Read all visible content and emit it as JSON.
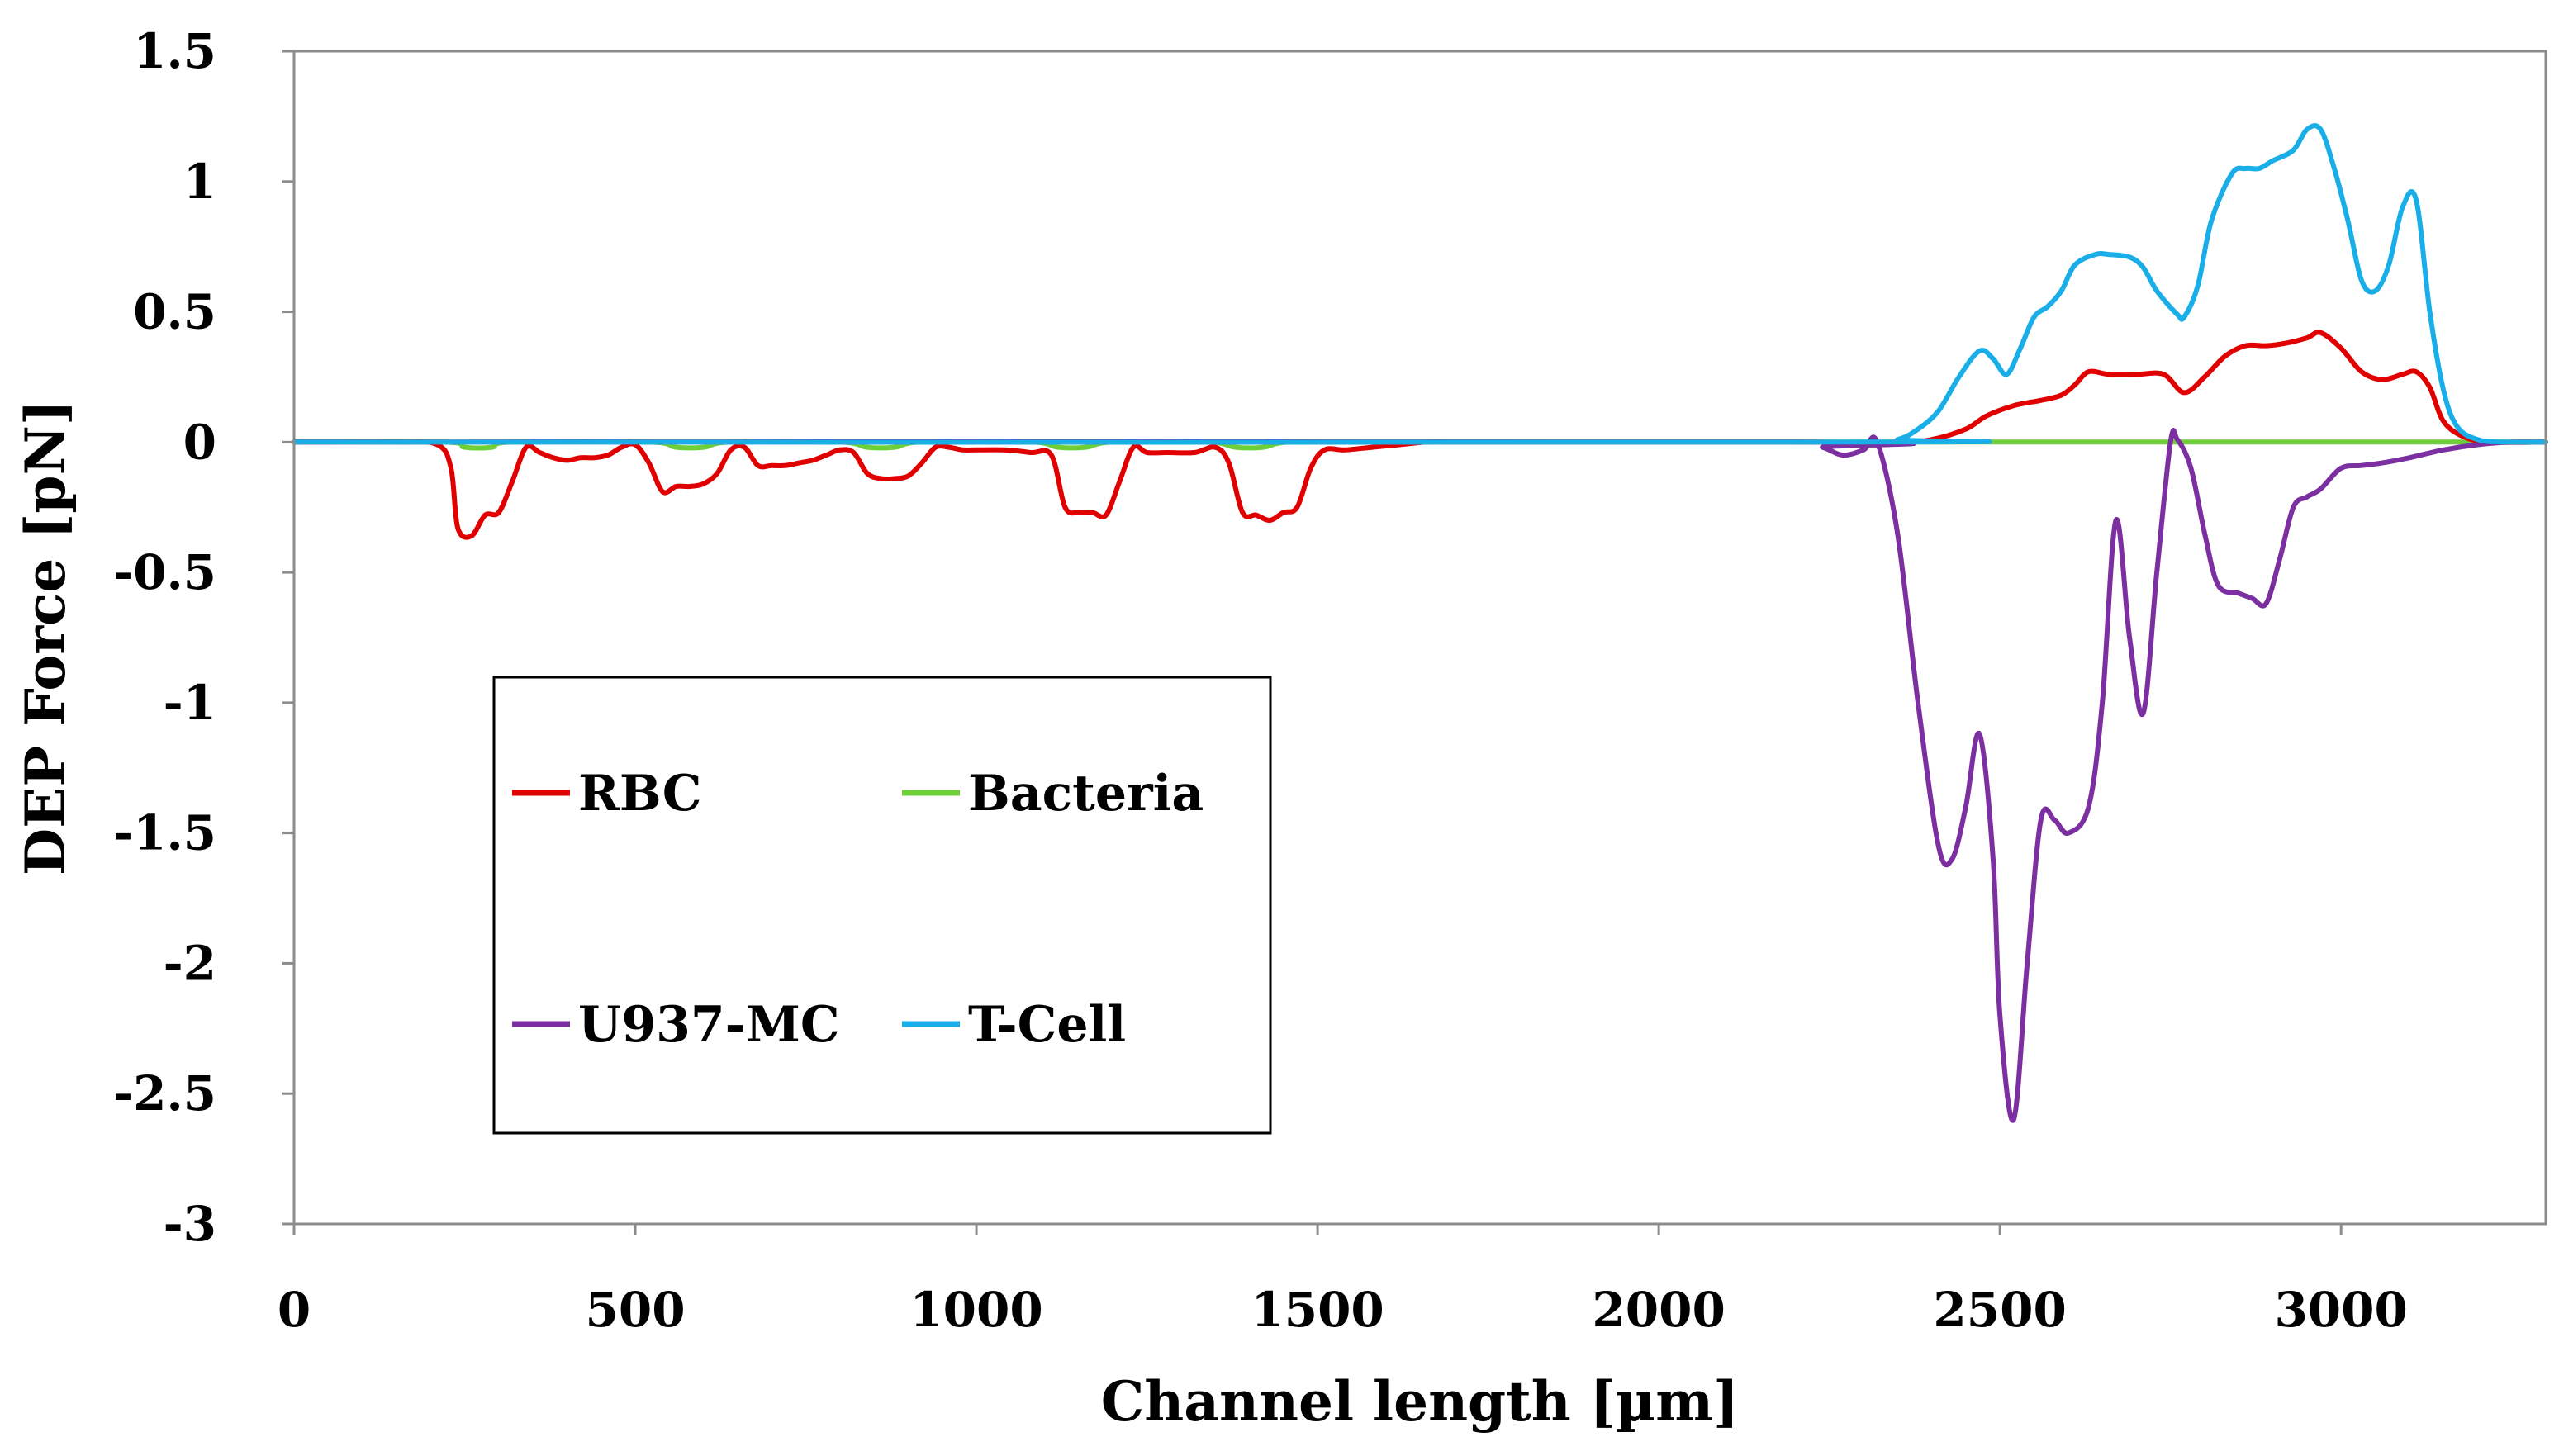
{
  "chart_data": {
    "type": "line",
    "title": "",
    "xlabel": "Channel length [µm]",
    "ylabel": "DEP Force [pN]",
    "xlim": [
      0,
      3300
    ],
    "ylim": [
      -3,
      1.5
    ],
    "xticks": [
      0,
      500,
      1000,
      1500,
      2000,
      2500,
      3000
    ],
    "xtick_labels": [
      "0",
      "500",
      "1000",
      "1500",
      "2000",
      "2500",
      "3000"
    ],
    "yticks": [
      1.5,
      1,
      0.5,
      0,
      -0.5,
      -1,
      -1.5,
      -2,
      -2.5,
      -3
    ],
    "ytick_labels": [
      "1.5",
      "1",
      "0.5",
      "0",
      "-0.5",
      "-1",
      "-1.5",
      "-2",
      "-2.5",
      "-3"
    ],
    "grid": false,
    "legend_position": "bottom-left, inside plot, two columns",
    "series": [
      {
        "name": "RBC",
        "color": "#e00000",
        "x": [
          0,
          150,
          210,
          230,
          240,
          260,
          280,
          300,
          320,
          340,
          360,
          380,
          400,
          420,
          440,
          460,
          480,
          500,
          520,
          540,
          560,
          580,
          600,
          620,
          640,
          660,
          680,
          700,
          720,
          740,
          760,
          780,
          800,
          820,
          840,
          860,
          880,
          900,
          920,
          940,
          960,
          980,
          1000,
          1040,
          1080,
          1110,
          1130,
          1150,
          1170,
          1190,
          1210,
          1230,
          1250,
          1280,
          1320,
          1350,
          1370,
          1390,
          1410,
          1430,
          1450,
          1470,
          1490,
          1510,
          1540,
          1580,
          1620,
          1660,
          1700,
          1800,
          2000,
          2200,
          2350,
          2400,
          2450,
          2480,
          2520,
          2560,
          2590,
          2610,
          2630,
          2660,
          2700,
          2740,
          2770,
          2800,
          2830,
          2860,
          2890,
          2920,
          2950,
          2970,
          3000,
          3030,
          3060,
          3090,
          3110,
          3130,
          3150,
          3180,
          3220,
          3300
        ],
        "y": [
          0,
          0,
          -0.01,
          -0.1,
          -0.33,
          -0.36,
          -0.28,
          -0.27,
          -0.15,
          -0.02,
          -0.04,
          -0.06,
          -0.07,
          -0.06,
          -0.06,
          -0.05,
          -0.02,
          -0.01,
          -0.08,
          -0.19,
          -0.17,
          -0.17,
          -0.16,
          -0.12,
          -0.03,
          -0.02,
          -0.09,
          -0.09,
          -0.09,
          -0.08,
          -0.07,
          -0.05,
          -0.03,
          -0.04,
          -0.12,
          -0.14,
          -0.14,
          -0.13,
          -0.08,
          -0.02,
          -0.02,
          -0.03,
          -0.03,
          -0.03,
          -0.04,
          -0.05,
          -0.25,
          -0.27,
          -0.27,
          -0.28,
          -0.15,
          -0.02,
          -0.04,
          -0.04,
          -0.04,
          -0.02,
          -0.08,
          -0.27,
          -0.28,
          -0.3,
          -0.27,
          -0.25,
          -0.1,
          -0.03,
          -0.03,
          -0.02,
          -0.01,
          0,
          0,
          0,
          0,
          0,
          0,
          0.01,
          0.05,
          0.1,
          0.14,
          0.16,
          0.18,
          0.22,
          0.27,
          0.26,
          0.26,
          0.26,
          0.19,
          0.25,
          0.33,
          0.37,
          0.37,
          0.38,
          0.4,
          0.42,
          0.36,
          0.27,
          0.24,
          0.26,
          0.27,
          0.21,
          0.08,
          0.02,
          0.0,
          0
        ]
      },
      {
        "name": "Bacteria",
        "color": "#6fcf3a",
        "x": [
          0,
          220,
          250,
          290,
          320,
          520,
          560,
          600,
          640,
          800,
          840,
          880,
          920,
          1080,
          1120,
          1160,
          1200,
          1340,
          1380,
          1420,
          1460,
          1600,
          3300
        ],
        "y": [
          0,
          0,
          -0.02,
          -0.02,
          0,
          0,
          -0.02,
          -0.02,
          0,
          0,
          -0.02,
          -0.02,
          0,
          0,
          -0.02,
          -0.02,
          0,
          0,
          -0.02,
          -0.02,
          0,
          0,
          0
        ]
      },
      {
        "name": "U937-MC",
        "color": "#7b2fa0",
        "x": [
          0,
          2200,
          2240,
          2270,
          2300,
          2320,
          2350,
          2380,
          2410,
          2430,
          2450,
          2470,
          2490,
          2500,
          2520,
          2540,
          2560,
          2580,
          2600,
          2630,
          2650,
          2670,
          2690,
          2710,
          2730,
          2750,
          2760,
          2780,
          2800,
          2820,
          2850,
          2870,
          2890,
          2910,
          2930,
          2950,
          2970,
          3000,
          3030,
          3060,
          3100,
          3150,
          3200,
          3250,
          3300
        ],
        "y": [
          0,
          0,
          -0.02,
          -0.05,
          -0.03,
          0,
          -0.35,
          -1.0,
          -1.55,
          -1.6,
          -1.4,
          -1.12,
          -1.6,
          -2.2,
          -2.6,
          -2.0,
          -1.45,
          -1.45,
          -1.5,
          -1.4,
          -1.0,
          -0.3,
          -0.75,
          -1.04,
          -0.5,
          0.0,
          0.01,
          -0.1,
          -0.35,
          -0.55,
          -0.58,
          -0.6,
          -0.62,
          -0.45,
          -0.25,
          -0.21,
          -0.18,
          -0.1,
          -0.09,
          -0.08,
          -0.06,
          -0.03,
          -0.01,
          0,
          0
        ]
      },
      {
        "name": "T-Cell",
        "color": "#1aaee8",
        "x": [
          0,
          2300,
          2350,
          2380,
          2410,
          2440,
          2470,
          2490,
          2510,
          2530,
          2550,
          2570,
          2590,
          2610,
          2640,
          2660,
          2690,
          2710,
          2730,
          2760,
          2770,
          2790,
          2810,
          2840,
          2860,
          2880,
          2900,
          2930,
          2950,
          2970,
          2990,
          3010,
          3030,
          3050,
          3070,
          3090,
          3110,
          3130,
          3150,
          3170,
          3200,
          3240,
          3300
        ],
        "y": [
          0,
          0,
          0.01,
          0.05,
          0.12,
          0.25,
          0.35,
          0.32,
          0.26,
          0.36,
          0.48,
          0.52,
          0.58,
          0.68,
          0.72,
          0.72,
          0.71,
          0.67,
          0.58,
          0.49,
          0.48,
          0.6,
          0.85,
          1.03,
          1.05,
          1.05,
          1.08,
          1.12,
          1.2,
          1.2,
          1.05,
          0.85,
          0.62,
          0.58,
          0.68,
          0.9,
          0.93,
          0.5,
          0.2,
          0.06,
          0.01,
          0,
          0
        ]
      }
    ]
  }
}
